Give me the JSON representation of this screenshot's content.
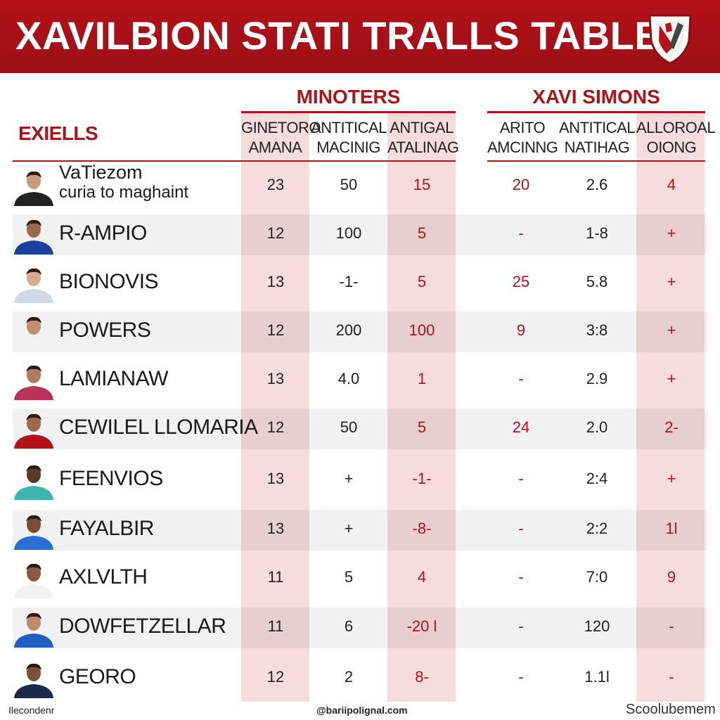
{
  "header": {
    "title": "XAVILBION STATI TRALLS TABLE",
    "crest_icon": "club-crest-icon"
  },
  "colors": {
    "accent": "#b3121a",
    "column_tint": "#f6dcdc",
    "row_alt": "#ededed"
  },
  "table": {
    "section_label": "EXIELLS",
    "groups": [
      {
        "title": "MINOTERS"
      },
      {
        "title": "XAVI SIMONS"
      }
    ],
    "columns": [
      {
        "line1": "GINETORO",
        "line2": "AMANA"
      },
      {
        "line1": "ANTITICAL",
        "line2": "MACINIG"
      },
      {
        "line1": "ANTIGAL",
        "line2": "ATALINAG"
      },
      {
        "line1": "ARITO",
        "line2": "AMCINNG"
      },
      {
        "line1": "ANTITICAL",
        "line2": "NATIHAG"
      },
      {
        "line1": "ALLOROAL",
        "line2": "OIONG"
      }
    ],
    "rows": [
      {
        "name": "VaTiezom",
        "subname": "curia to maghaint",
        "values": [
          "23",
          "50",
          "15",
          "20",
          "2.6",
          "4"
        ]
      },
      {
        "name": "R-AMPIO",
        "values": [
          "12",
          "100",
          "5",
          "-",
          "1-8",
          "+"
        ]
      },
      {
        "name": "BIONOVIS",
        "values": [
          "13",
          "-1-",
          "5",
          "25",
          "5.8",
          "+"
        ]
      },
      {
        "name": "POWERS",
        "values": [
          "12",
          "200",
          "100",
          "9",
          "3:8",
          "+"
        ]
      },
      {
        "name": "LAMIANAW",
        "values": [
          "13",
          "4.0",
          "1",
          "-",
          "2.9",
          "+"
        ]
      },
      {
        "name": "CEWILEL LLOMARIA",
        "values": [
          "12",
          "50",
          "5",
          "24",
          "2.0",
          "2-"
        ]
      },
      {
        "name": "FEENVIOS",
        "values": [
          "13",
          "+",
          "-1-",
          "-",
          "2:4",
          "+"
        ]
      },
      {
        "name": "FAYALBIR",
        "values": [
          "13",
          "+",
          "-8-",
          "-",
          "2:2",
          "1l"
        ]
      },
      {
        "name": "AXLVLTH",
        "values": [
          "11",
          "5",
          "4",
          "-",
          "7:0",
          "9"
        ]
      },
      {
        "name": "DOWFETZELLAR",
        "values": [
          "11",
          "6",
          "-20 l",
          "-",
          "120",
          "-"
        ]
      },
      {
        "name": "GEORO",
        "values": [
          "12",
          "2",
          "8-",
          "-",
          "1.1l",
          "-"
        ]
      }
    ]
  },
  "footer": {
    "left": "Ilecondenr",
    "middle": "@bariipolignal.com",
    "right": "Scoolubemem"
  }
}
